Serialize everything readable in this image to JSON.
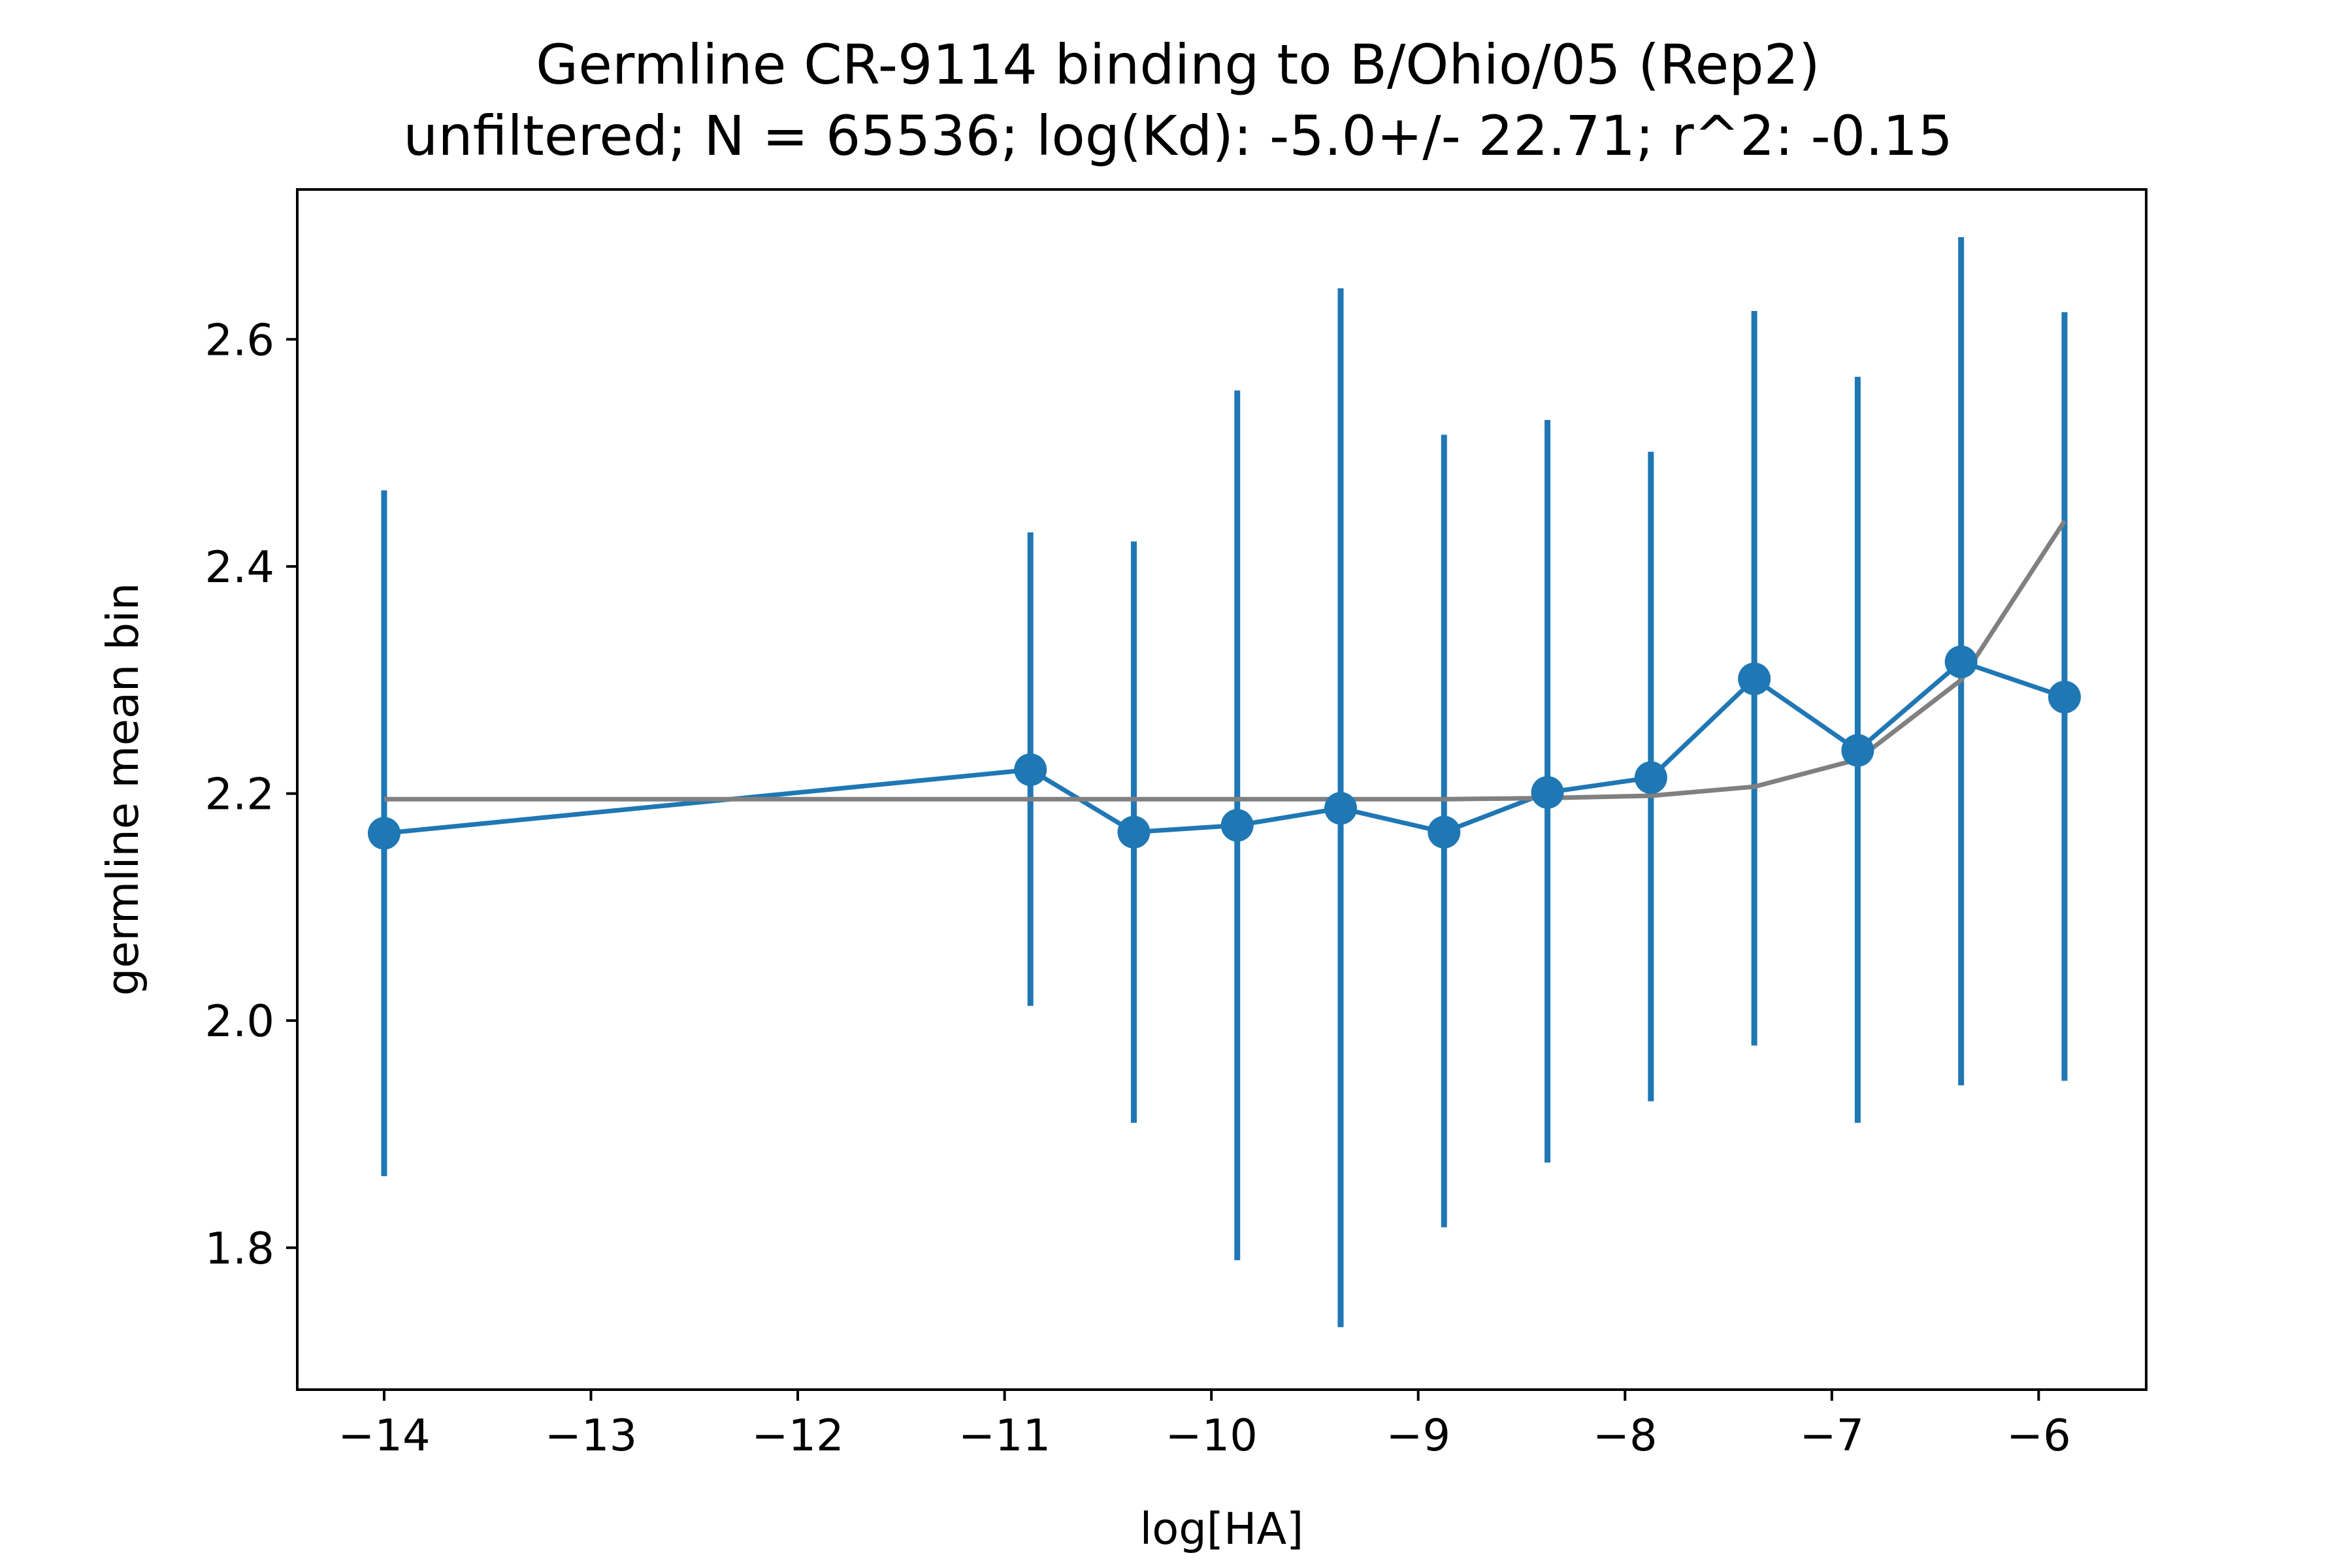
{
  "chart_data": {
    "type": "line",
    "title": [
      "Germline CR-9114 binding to B/Ohio/05 (Rep2)",
      "unfiltered; N = 65536; log(Kd): -5.0+/- 22.71; r^2: -0.15"
    ],
    "xlabel": "log[HA]",
    "ylabel": "germline mean bin",
    "xlim": [
      -14.42,
      -5.48
    ],
    "ylim": [
      1.675,
      2.732
    ],
    "xticks": [
      -14,
      -13,
      -12,
      -11,
      -10,
      -9,
      -8,
      -7,
      -6
    ],
    "xtick_labels": [
      "−14",
      "−13",
      "−12",
      "−11",
      "−10",
      "−9",
      "−8",
      "−7",
      "−6"
    ],
    "yticks": [
      1.8,
      2.0,
      2.2,
      2.4,
      2.6
    ],
    "ytick_labels": [
      "1.8",
      "2.0",
      "2.2",
      "2.4",
      "2.6"
    ],
    "grid": false,
    "series": [
      {
        "kind": "errorbar",
        "color": "#1f77b4",
        "x": [
          -14.0,
          -10.875,
          -10.375,
          -9.875,
          -9.375,
          -8.875,
          -8.375,
          -7.875,
          -7.375,
          -6.875,
          -6.375,
          -5.875
        ],
        "y": [
          2.165,
          2.221,
          2.166,
          2.172,
          2.187,
          2.166,
          2.201,
          2.214,
          2.301,
          2.238,
          2.316,
          2.285
        ],
        "yerr_low": [
          1.863,
          2.013,
          1.91,
          1.789,
          1.73,
          1.818,
          1.875,
          1.929,
          1.978,
          1.91,
          1.943,
          1.947
        ],
        "yerr_high": [
          2.467,
          2.43,
          2.422,
          2.555,
          2.645,
          2.516,
          2.529,
          2.501,
          2.625,
          2.567,
          2.69,
          2.624
        ]
      },
      {
        "kind": "fit",
        "color": "#808080",
        "x": [
          -14.0,
          -10.875,
          -10.375,
          -9.875,
          -9.375,
          -8.875,
          -8.375,
          -7.875,
          -7.375,
          -6.875,
          -6.375,
          -5.875
        ],
        "y": [
          2.195,
          2.195,
          2.195,
          2.195,
          2.195,
          2.195,
          2.196,
          2.198,
          2.206,
          2.23,
          2.3,
          2.44
        ]
      }
    ]
  }
}
